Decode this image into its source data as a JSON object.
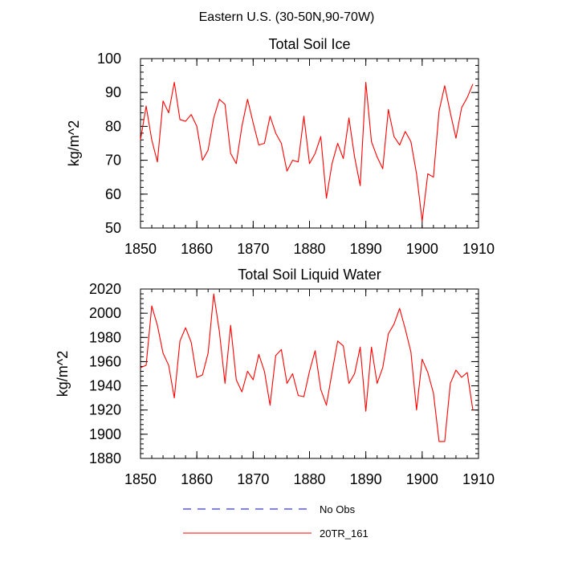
{
  "figure_title": "Eastern U.S. (30-50N,90-70W)",
  "legend": [
    {
      "label": "No Obs",
      "color": "#0000ff",
      "dash": "dashed"
    },
    {
      "label": "20TR_161",
      "color": "#ff0000",
      "dash": "solid"
    }
  ],
  "chart_data": [
    {
      "type": "line",
      "title": "Total Soil Ice",
      "xlabel": "",
      "ylabel": "kg/m^2",
      "xlim": [
        1850,
        1910
      ],
      "ylim": [
        50,
        100
      ],
      "xticks": [
        1850,
        1860,
        1870,
        1880,
        1890,
        1900,
        1910
      ],
      "yticks": [
        50,
        60,
        70,
        80,
        90,
        100
      ],
      "grid": false,
      "series": [
        {
          "name": "20TR_161",
          "color": "#ff0000",
          "x": [
            1850,
            1851,
            1852,
            1853,
            1854,
            1855,
            1856,
            1857,
            1858,
            1859,
            1860,
            1861,
            1862,
            1863,
            1864,
            1865,
            1866,
            1867,
            1868,
            1869,
            1870,
            1871,
            1872,
            1873,
            1874,
            1875,
            1876,
            1877,
            1878,
            1879,
            1880,
            1881,
            1882,
            1883,
            1884,
            1885,
            1886,
            1887,
            1888,
            1889,
            1890,
            1891,
            1892,
            1893,
            1894,
            1895,
            1896,
            1897,
            1898,
            1899,
            1900,
            1901,
            1902,
            1903,
            1904,
            1905,
            1906,
            1907,
            1908,
            1909
          ],
          "y": [
            76,
            86,
            76,
            69.5,
            87.5,
            84,
            93,
            82,
            81.5,
            83.5,
            80,
            70,
            73,
            82.5,
            88,
            86.5,
            72,
            69,
            80,
            88,
            81,
            74.5,
            75,
            83,
            78,
            75,
            66.8,
            70,
            69.5,
            83,
            69,
            72,
            77,
            58.8,
            69,
            75,
            70.5,
            82.5,
            71,
            62.5,
            93,
            75.5,
            71,
            67.5,
            85,
            77,
            74.5,
            78.5,
            75.5,
            66,
            52,
            66,
            65,
            84.5,
            92,
            84,
            76.5,
            85.5,
            88.5,
            92.5
          ]
        }
      ]
    },
    {
      "type": "line",
      "title": "Total Soil Liquid Water",
      "xlabel": "",
      "ylabel": "kg/m^2",
      "xlim": [
        1850,
        1910
      ],
      "ylim": [
        1880,
        2020
      ],
      "xticks": [
        1850,
        1860,
        1870,
        1880,
        1890,
        1900,
        1910
      ],
      "yticks": [
        1880,
        1900,
        1920,
        1940,
        1960,
        1980,
        2000,
        2020
      ],
      "grid": false,
      "series": [
        {
          "name": "20TR_161",
          "color": "#ff0000",
          "x": [
            1850,
            1851,
            1852,
            1853,
            1854,
            1855,
            1856,
            1857,
            1858,
            1859,
            1860,
            1861,
            1862,
            1863,
            1864,
            1865,
            1866,
            1867,
            1868,
            1869,
            1870,
            1871,
            1872,
            1873,
            1874,
            1875,
            1876,
            1877,
            1878,
            1879,
            1880,
            1881,
            1882,
            1883,
            1884,
            1885,
            1886,
            1887,
            1888,
            1889,
            1890,
            1891,
            1892,
            1893,
            1894,
            1895,
            1896,
            1897,
            1898,
            1899,
            1900,
            1901,
            1902,
            1903,
            1904,
            1905,
            1906,
            1907,
            1908,
            1909
          ],
          "y": [
            1955,
            1957,
            2006,
            1990,
            1967,
            1957,
            1930,
            1977,
            1988,
            1976,
            1947,
            1949,
            1967,
            2016,
            1985,
            1942,
            1990,
            1945,
            1935,
            1952,
            1945,
            1966,
            1952,
            1924,
            1965,
            1970,
            1942,
            1950,
            1932,
            1931,
            1952,
            1969,
            1937,
            1924,
            1951,
            1977,
            1973,
            1942,
            1950,
            1972,
            1919,
            1972,
            1942,
            1955,
            1983,
            1991,
            2004,
            1987,
            1968,
            1920,
            1962,
            1951,
            1934,
            1894,
            1894,
            1942,
            1953,
            1947,
            1951,
            1920
          ]
        }
      ]
    }
  ]
}
